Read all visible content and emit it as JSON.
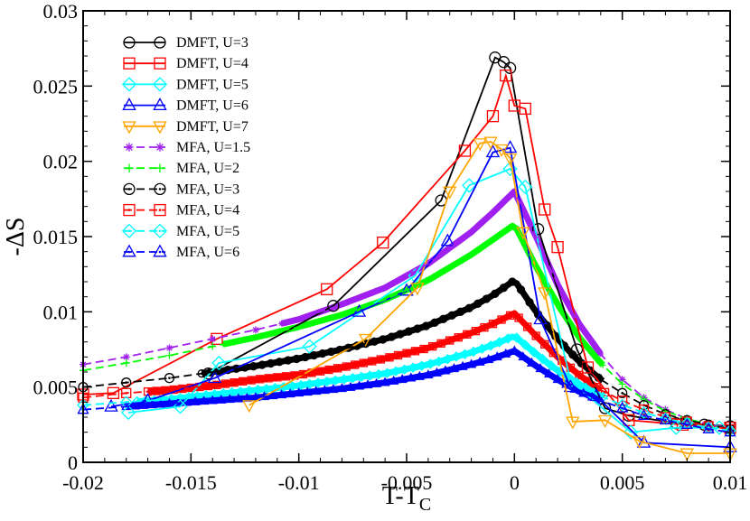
{
  "chart_data": {
    "type": "line",
    "title": "",
    "xlabel": "T-T",
    "xlabel_sub": "C",
    "ylabel": "-ΔS",
    "xlim": [
      -0.02,
      0.01
    ],
    "ylim": [
      0,
      0.03
    ],
    "grid": false,
    "legend_position": "top-left",
    "x_ticks": [
      -0.02,
      -0.015,
      -0.01,
      -0.005,
      0,
      0.005,
      0.01
    ],
    "x_tick_labels": [
      "-0.02",
      "-0.015",
      "-0.01",
      "-0.005",
      "0",
      "0.005",
      "0.01"
    ],
    "y_ticks": [
      0,
      0.005,
      0.01,
      0.015,
      0.02,
      0.025,
      0.03
    ],
    "y_tick_labels": [
      "0",
      "0.005",
      "0.01",
      "0.015",
      "0.02",
      "0.025",
      "0.03"
    ],
    "series": [
      {
        "name": "DMFT, U=3",
        "color": "#000000",
        "marker": "circle",
        "dashed": false,
        "x": [
          -0.0142,
          -0.0084,
          -0.0034,
          -0.0009,
          -0.0005,
          -0.0002,
          0.0011,
          0.0029,
          0.0042,
          0.0053,
          0.0075,
          0.0088,
          0.01
        ],
        "y": [
          0.0059,
          0.0104,
          0.0174,
          0.0269,
          0.0266,
          0.0262,
          0.0155,
          0.0075,
          0.0036,
          0.0031,
          0.0026,
          0.0025,
          0.0024
        ]
      },
      {
        "name": "DMFT, U=4",
        "color": "#ff0000",
        "marker": "square",
        "dashed": false,
        "x": [
          -0.02,
          -0.0186,
          -0.0138,
          -0.0087,
          -0.0061,
          -0.0023,
          -0.001,
          -0.0004,
          0.0,
          0.0005,
          0.0014,
          0.002,
          0.0034,
          0.0053,
          0.0078,
          0.01
        ],
        "y": [
          0.0045,
          0.0046,
          0.0082,
          0.0115,
          0.0146,
          0.0207,
          0.023,
          0.0257,
          0.0237,
          0.0235,
          0.0168,
          0.0143,
          0.0063,
          0.0028,
          0.0025,
          0.0023
        ]
      },
      {
        "name": "DMFT, U=5",
        "color": "#00ffff",
        "marker": "diamond",
        "dashed": false,
        "x": [
          -0.0179,
          -0.0155,
          -0.0137,
          -0.0095,
          -0.0046,
          -0.0021,
          -0.0002,
          0.0005,
          0.0026,
          0.0054,
          0.0075,
          0.0095
        ],
        "y": [
          0.0033,
          0.0037,
          0.0066,
          0.0077,
          0.0124,
          0.0184,
          0.0195,
          0.0183,
          0.0054,
          0.002,
          0.0023,
          0.0023
        ]
      },
      {
        "name": "DMFT, U=6",
        "color": "#0000ff",
        "marker": "triangle-up",
        "dashed": false,
        "x": [
          -0.0187,
          -0.017,
          -0.0139,
          -0.0072,
          -0.005,
          -0.0031,
          -0.001,
          -0.0002,
          0.0012,
          0.0026,
          0.0038,
          0.006,
          0.01
        ],
        "y": [
          0.0037,
          0.0041,
          0.0056,
          0.01,
          0.0114,
          0.0147,
          0.0206,
          0.0209,
          0.0095,
          0.005,
          0.0044,
          0.0013,
          0.001
        ]
      },
      {
        "name": "DMFT, U=7",
        "color": "#ffa500",
        "marker": "triangle-down",
        "dashed": false,
        "x": [
          -0.0123,
          -0.0069,
          -0.0045,
          -0.003,
          -0.0016,
          -0.0011,
          -0.0006,
          -0.0002,
          0.0004,
          0.0014,
          0.0027,
          0.0042,
          0.0058,
          0.008,
          0.01
        ],
        "y": [
          0.0038,
          0.0082,
          0.0116,
          0.018,
          0.0212,
          0.0213,
          0.0208,
          0.0202,
          0.0153,
          0.0113,
          0.0027,
          0.0028,
          0.0014,
          0.0006,
          0.0006
        ]
      },
      {
        "name": "MFA, U=1.5",
        "color": "#a020f0",
        "marker": "star",
        "dashed": true,
        "x": [
          -0.02,
          -0.018,
          -0.016,
          -0.014,
          -0.012,
          -0.01,
          -0.008,
          -0.006,
          -0.004,
          -0.002,
          -0.001,
          0,
          0.001,
          0.002,
          0.003,
          0.004,
          0.005,
          0.006,
          0.007,
          0.008,
          0.009,
          0.01
        ],
        "y": [
          0.0065,
          0.007,
          0.0076,
          0.0082,
          0.0088,
          0.0095,
          0.0105,
          0.0116,
          0.0132,
          0.0153,
          0.0166,
          0.018,
          0.015,
          0.0118,
          0.0092,
          0.0072,
          0.0055,
          0.0043,
          0.0035,
          0.0029,
          0.0025,
          0.0023
        ]
      },
      {
        "name": "MFA, U=2",
        "color": "#00ff00",
        "marker": "plus",
        "dashed": true,
        "x": [
          -0.02,
          -0.018,
          -0.016,
          -0.014,
          -0.012,
          -0.01,
          -0.008,
          -0.006,
          -0.004,
          -0.002,
          -0.001,
          0,
          0.001,
          0.002,
          0.003,
          0.004,
          0.005,
          0.006,
          0.007,
          0.008,
          0.009,
          0.01
        ],
        "y": [
          0.0061,
          0.0066,
          0.0071,
          0.0077,
          0.0083,
          0.009,
          0.0098,
          0.0108,
          0.0121,
          0.0138,
          0.0148,
          0.0158,
          0.013,
          0.0105,
          0.0083,
          0.0066,
          0.0052,
          0.0042,
          0.0034,
          0.0029,
          0.0025,
          0.0022
        ]
      },
      {
        "name": "MFA, U=3",
        "color": "#000000",
        "marker": "dot-circle",
        "dashed": true,
        "x": [
          -0.02,
          -0.018,
          -0.016,
          -0.014,
          -0.012,
          -0.01,
          -0.008,
          -0.006,
          -0.004,
          -0.002,
          -0.001,
          0,
          0.001,
          0.002,
          0.003,
          0.004,
          0.005,
          0.006,
          0.007,
          0.008,
          0.009,
          0.01
        ],
        "y": [
          0.005,
          0.0053,
          0.0056,
          0.006,
          0.0064,
          0.0069,
          0.0075,
          0.0082,
          0.0091,
          0.0103,
          0.0111,
          0.0121,
          0.01,
          0.0082,
          0.0067,
          0.0055,
          0.0046,
          0.0038,
          0.0032,
          0.0028,
          0.0025,
          0.0022
        ]
      },
      {
        "name": "MFA, U=4",
        "color": "#ff0000",
        "marker": "dot-square",
        "dashed": true,
        "x": [
          -0.02,
          -0.018,
          -0.016,
          -0.014,
          -0.012,
          -0.01,
          -0.008,
          -0.006,
          -0.004,
          -0.002,
          -0.001,
          0,
          0.001,
          0.002,
          0.003,
          0.004,
          0.005,
          0.006,
          0.007,
          0.008,
          0.009,
          0.01
        ],
        "y": [
          0.0043,
          0.0046,
          0.0048,
          0.0051,
          0.0055,
          0.0058,
          0.0063,
          0.0069,
          0.0076,
          0.0086,
          0.0092,
          0.0099,
          0.0084,
          0.007,
          0.0058,
          0.0048,
          0.0041,
          0.0035,
          0.003,
          0.0027,
          0.0024,
          0.0022
        ]
      },
      {
        "name": "MFA, U=5",
        "color": "#00ffff",
        "marker": "dot-diamond",
        "dashed": true,
        "x": [
          -0.02,
          -0.018,
          -0.016,
          -0.014,
          -0.012,
          -0.01,
          -0.008,
          -0.006,
          -0.004,
          -0.002,
          -0.001,
          0,
          0.001,
          0.002,
          0.003,
          0.004,
          0.005,
          0.006,
          0.007,
          0.008,
          0.009,
          0.01
        ],
        "y": [
          0.0038,
          0.004,
          0.0042,
          0.0045,
          0.0048,
          0.0051,
          0.0055,
          0.0059,
          0.0065,
          0.0073,
          0.0078,
          0.0084,
          0.0072,
          0.0061,
          0.0052,
          0.0044,
          0.0038,
          0.0033,
          0.0029,
          0.0026,
          0.0023,
          0.0021
        ]
      },
      {
        "name": "MFA, U=6",
        "color": "#0000ff",
        "marker": "dot-triangle",
        "dashed": true,
        "x": [
          -0.02,
          -0.018,
          -0.016,
          -0.014,
          -0.012,
          -0.01,
          -0.008,
          -0.006,
          -0.004,
          -0.002,
          -0.001,
          0,
          0.001,
          0.002,
          0.003,
          0.004,
          0.005,
          0.006,
          0.007,
          0.008,
          0.009,
          0.01
        ],
        "y": [
          0.0035,
          0.0037,
          0.0039,
          0.0041,
          0.0043,
          0.0046,
          0.0049,
          0.0053,
          0.0058,
          0.0065,
          0.0069,
          0.0074,
          0.0064,
          0.0055,
          0.0047,
          0.0041,
          0.0036,
          0.0031,
          0.0028,
          0.0025,
          0.0022,
          0.002
        ]
      }
    ]
  }
}
